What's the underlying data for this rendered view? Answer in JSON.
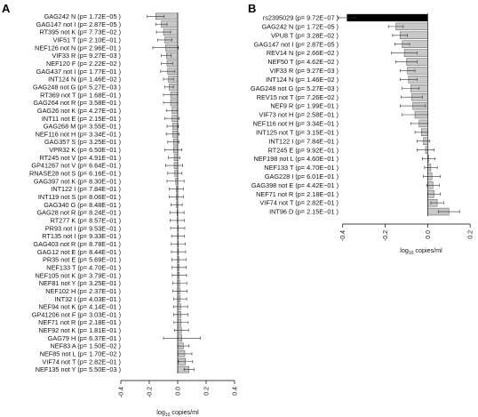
{
  "chart_data": [
    {
      "type": "bar",
      "orientation": "horizontal",
      "panel_label": "A",
      "xlabel": "log10 copies/ml",
      "xlabel_base": "log",
      "xlabel_sub": "10",
      "xlabel_rest": " copies/ml",
      "xlim": [
        -0.45,
        0.45
      ],
      "xticks": [
        "-0.4",
        "-0.2",
        "0.0",
        "0.2",
        "0.4"
      ],
      "xtick_values": [
        -0.4,
        -0.2,
        0.0,
        0.2,
        0.4
      ],
      "grid": false,
      "bar_color": "#c8c8c8",
      "categories": [
        "GAG242 N (p= 1.72E−05 )",
        "GAG147 not I (p= 2.87E−05 )",
        "RT395 not K (p= 7.73E−02 )",
        "VIF51 T (p= 2.10E−01 )",
        "NEF126 not N (p= 2.96E−01 )",
        "VIF33 R (p= 9.27E−03 )",
        "NEF120 F (p= 2.22E−02 )",
        "GAG437 not I (p= 1.77E−01 )",
        "INT124 N (p= 1.46E−02 )",
        "GAG248 not G (p= 5.27E−03 )",
        "RT369 not T (p= 1.68E−01 )",
        "GAG264 not R (p= 3.58E−01 )",
        "GAG26 not K (p= 4.27E−01 )",
        "INT11 not E (p= 2.15E−01 )",
        "GAG268 M (p= 3.55E−01 )",
        "NEF116 not H (p= 3.34E−01 )",
        "GAG357 S (p= 3.25E−01 )",
        "VPR32 K (p= 6.50E−01 )",
        "RT245 not V (p= 4.91E−01 )",
        "GP41267 not V (p= 6.64E−01 )",
        "RNASE28 not S (p= 6.16E−01 )",
        "GAG397 not K (p= 8.30E−01 )",
        "INT122 I (p= 7.84E−01 )",
        "INT119 not S (p= 8.06E−01 )",
        "GAG340 G (p= 8.48E−01 )",
        "GAG28 not R (p= 8.24E−01 )",
        "RT277 K (p= 8.57E−01 )",
        "PR93 not I (p= 9.53E−01 )",
        "RT135 not I (p= 9.33E−01 )",
        "GAG403 not R (p= 8.78E−01 )",
        "GAG12 not E (p= 8.44E−01 )",
        "PR35 not E (p= 5.69E−01 )",
        "NEF133 T (p= 4.70E−01 )",
        "NEF105 not K (p= 3.79E−01 )",
        "NEF81 not Y (p= 3.25E−01 )",
        "NEF102 H (p= 2.37E−01 )",
        "INT32 I (p= 4.03E−01 )",
        "NEF94 not K (p= 4.14E−01 )",
        "GP41206 not F (p= 3.03E−01 )",
        "NEF71 not R (p= 2.18E−01 )",
        "NEF92 not K (p= 1.81E−01 )",
        "GAG79 H (p= 6.37E−01 )",
        "NEF83 A (p= 1.50E−02 )",
        "NEF85 not L (p= 1.70E−02 )",
        "VIF74 not T (p= 2.82E−01 )",
        "NEF135 not Y (p= 5.50E−03 )"
      ],
      "values": [
        -0.155,
        -0.115,
        -0.1,
        -0.09,
        -0.085,
        -0.08,
        -0.075,
        -0.07,
        -0.065,
        -0.06,
        -0.05,
        -0.05,
        -0.04,
        -0.04,
        -0.035,
        -0.035,
        -0.03,
        -0.03,
        -0.025,
        -0.025,
        -0.02,
        -0.015,
        -0.01,
        -0.01,
        -0.008,
        -0.005,
        -0.003,
        0.0,
        0.002,
        0.004,
        0.006,
        0.008,
        0.01,
        0.012,
        0.014,
        0.016,
        0.018,
        0.02,
        0.022,
        0.024,
        0.026,
        0.03,
        0.04,
        0.05,
        0.055,
        0.08
      ],
      "errors": [
        0.06,
        0.04,
        0.05,
        0.05,
        0.09,
        0.035,
        0.04,
        0.05,
        0.035,
        0.03,
        0.05,
        0.05,
        0.04,
        0.05,
        0.04,
        0.045,
        0.04,
        0.06,
        0.04,
        0.06,
        0.05,
        0.06,
        0.05,
        0.05,
        0.04,
        0.05,
        0.05,
        0.05,
        0.045,
        0.05,
        0.05,
        0.05,
        0.05,
        0.05,
        0.05,
        0.05,
        0.045,
        0.05,
        0.05,
        0.05,
        0.05,
        0.13,
        0.04,
        0.05,
        0.05,
        0.035
      ]
    },
    {
      "type": "bar",
      "orientation": "horizontal",
      "panel_label": "B",
      "xlabel": "log10 copies/ml",
      "xlabel_base": "log",
      "xlabel_sub": "10",
      "xlabel_rest": " copies/ml",
      "xlim": [
        -0.47,
        0.17
      ],
      "xticks": [
        "-0.4",
        "-0.2",
        "0.0",
        "0.2"
      ],
      "xtick_values": [
        -0.4,
        -0.2,
        0.0,
        0.2
      ],
      "grid": false,
      "bar_color": "#c8c8c8",
      "highlight_color": "#000000",
      "highlight_index": 0,
      "categories": [
        "rs2395029 (p= 9.72E−07 )",
        "GAG242 N (p= 1.72E−05 )",
        "VPU8 T (p= 3.28E−02 )",
        "GAG147 not I (p= 2.87E−05 )",
        "REV14 N (p= 2.66E−02 )",
        "NEF50 T (p= 4.62E−02 )",
        "VIF33 R (p= 9.27E−03 )",
        "INT124 N (p= 1.46E−02 )",
        "GAG248 not G (p= 5.27E−03 )",
        "REV15 not T (p= 7.26E−02 )",
        "NEF9 R (p= 1.99E−01 )",
        "VIF73 not H (p= 2.58E−01 )",
        "NEF116 not H (p= 3.34E−01 )",
        "INT125 not T (p= 3.15E−01 )",
        "INT122 I (p= 7.84E−01 )",
        "RT245 E (p= 9.92E−01 )",
        "NEF198 not L (p= 4.60E−01 )",
        "NEF133 T (p= 4.70E−01 )",
        "GAG228 I (p= 6.01E−01 )",
        "GAG398 not E (p= 4.42E−01 )",
        "NEF71 not R (p= 2.18E−01 )",
        "VIF74 not T (p= 2.82E−01 )",
        "INT96 D (p= 2.15E−01 )"
      ],
      "values": [
        -0.38,
        -0.15,
        -0.13,
        -0.12,
        -0.11,
        -0.1,
        -0.095,
        -0.09,
        -0.08,
        -0.075,
        -0.07,
        -0.06,
        -0.04,
        -0.03,
        -0.02,
        -0.01,
        0.005,
        0.015,
        0.02,
        0.025,
        0.03,
        0.045,
        0.1
      ],
      "errors": [
        0.04,
        0.035,
        0.035,
        0.035,
        0.06,
        0.05,
        0.035,
        0.04,
        0.04,
        0.05,
        0.06,
        0.06,
        0.04,
        0.03,
        0.03,
        0.04,
        0.03,
        0.03,
        0.04,
        0.03,
        0.03,
        0.03,
        0.05
      ]
    }
  ]
}
